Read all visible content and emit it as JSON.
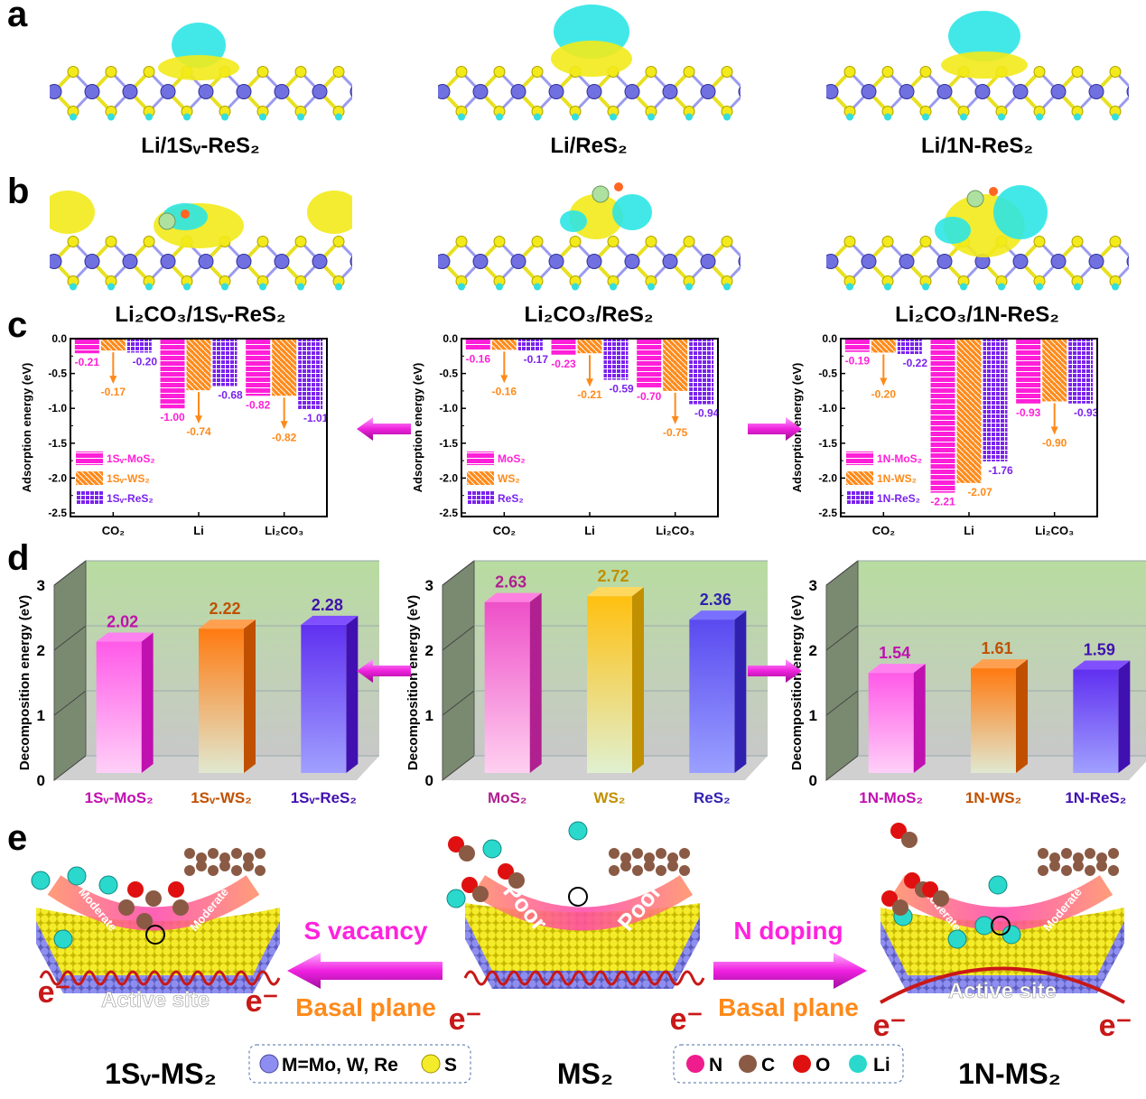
{
  "panel_labels": {
    "a": "a",
    "b": "b",
    "c": "c",
    "d": "d",
    "e": "e"
  },
  "panel_a": {
    "captions": [
      "Li/1Sᵥ-ReS₂",
      "Li/ReS₂",
      "Li/1N-ReS₂"
    ]
  },
  "panel_b": {
    "captions": [
      "Li₂CO₃/1Sᵥ-ReS₂",
      "Li₂CO₃/ReS₂",
      "Li₂CO₃/1N-ReS₂"
    ]
  },
  "colors": {
    "mo": "#ff1fd8",
    "w": "#ff8a1a",
    "re": "#7a22ee",
    "cyan": "#2ee6e6",
    "sulfur": "#f2ea1a",
    "metal": "#7b7bea",
    "arrow": "#ff33dd"
  },
  "chart_data": [
    {
      "type": "bar",
      "ylabel": "Adsorption energy (eV)",
      "ylim": [
        -2.5,
        0
      ],
      "yticks": [
        "0.0",
        "-0.5",
        "-1.0",
        "-1.5",
        "-2.0",
        "-2.5"
      ],
      "categories": [
        "CO₂",
        "Li",
        "Li₂CO₃"
      ],
      "legend": "bottom-left",
      "series": [
        {
          "name": "1Sᵥ-MoS₂",
          "values": [
            -0.21,
            -1.0,
            -0.82
          ],
          "labels": [
            "-0.21",
            "-1.00",
            "-0.82"
          ]
        },
        {
          "name": "1Sᵥ-WS₂",
          "values": [
            -0.17,
            -0.74,
            -0.82
          ],
          "labels": [
            "-0.17",
            "-0.74",
            "-0.82"
          ]
        },
        {
          "name": "1Sᵥ-ReS₂",
          "values": [
            -0.2,
            -0.68,
            -1.01
          ],
          "labels": [
            "-0.20",
            "-0.68",
            "-1.01"
          ]
        }
      ]
    },
    {
      "type": "bar",
      "ylabel": "Adsorption energy (eV)",
      "ylim": [
        -2.5,
        0
      ],
      "yticks": [
        "0.0",
        "-0.5",
        "-1.0",
        "-1.5",
        "-2.0",
        "-2.5"
      ],
      "categories": [
        "CO₂",
        "Li",
        "Li₂CO₃"
      ],
      "legend": "bottom-left",
      "series": [
        {
          "name": "MoS₂",
          "values": [
            -0.16,
            -0.23,
            -0.7
          ],
          "labels": [
            "-0.16",
            "-0.23",
            "-0.70"
          ]
        },
        {
          "name": "WS₂",
          "values": [
            -0.16,
            -0.21,
            -0.75
          ],
          "labels": [
            "-0.16",
            "-0.21",
            "-0.75"
          ]
        },
        {
          "name": "ReS₂",
          "values": [
            -0.17,
            -0.59,
            -0.94
          ],
          "labels": [
            "-0.17",
            "-0.59",
            "-0.94"
          ]
        }
      ]
    },
    {
      "type": "bar",
      "ylabel": "Adsorption energy (eV)",
      "ylim": [
        -2.5,
        0
      ],
      "yticks": [
        "0.0",
        "-0.5",
        "-1.0",
        "-1.5",
        "-2.0",
        "-2.5"
      ],
      "categories": [
        "CO₂",
        "Li",
        "Li₂CO₃"
      ],
      "legend": "bottom-left",
      "series": [
        {
          "name": "1N-MoS₂",
          "values": [
            -0.19,
            -2.21,
            -0.93
          ],
          "labels": [
            "-0.19",
            "-2.21",
            "-0.93"
          ]
        },
        {
          "name": "1N-WS₂",
          "values": [
            -0.2,
            -2.07,
            -0.9
          ],
          "labels": [
            "-0.20",
            "-2.07",
            "-0.90"
          ]
        },
        {
          "name": "1N-ReS₂",
          "values": [
            -0.22,
            -1.76,
            -0.93
          ],
          "labels": [
            "-0.22",
            "-1.76",
            "-0.93"
          ]
        }
      ]
    },
    {
      "type": "bar3d",
      "ylabel": "Decomposition energy (eV)",
      "ylim": [
        0,
        3
      ],
      "yticks": [
        "0",
        "1",
        "2",
        "3"
      ],
      "categories": [
        "1Sᵥ-MoS₂",
        "1Sᵥ-WS₂",
        "1Sᵥ-ReS₂"
      ],
      "values": [
        2.02,
        2.22,
        2.28
      ],
      "labels": [
        "2.02",
        "2.22",
        "2.28"
      ]
    },
    {
      "type": "bar3d",
      "ylabel": "Decomposition energy (eV)",
      "ylim": [
        0,
        3
      ],
      "yticks": [
        "0",
        "1",
        "2",
        "3"
      ],
      "categories": [
        "MoS₂",
        "WS₂",
        "ReS₂"
      ],
      "values": [
        2.63,
        2.72,
        2.36
      ],
      "labels": [
        "2.63",
        "2.72",
        "2.36"
      ]
    },
    {
      "type": "bar3d",
      "ylabel": "Decomposition energy (eV)",
      "ylim": [
        0,
        3
      ],
      "yticks": [
        "0",
        "1",
        "2",
        "3"
      ],
      "categories": [
        "1N-MoS₂",
        "1N-WS₂",
        "1N-ReS₂"
      ],
      "values": [
        1.54,
        1.61,
        1.59
      ],
      "labels": [
        "1.54",
        "1.61",
        "1.59"
      ]
    }
  ],
  "panel_e": {
    "s_vacancy": "S vacancy",
    "n_doping": "N doping",
    "basal_plane_left": "Basal plane",
    "basal_plane_right": "Basal plane",
    "moderate": "Moderate",
    "poor": "Poor",
    "active_site": "Active site",
    "electron": "e⁻",
    "names": [
      "1Sᵥ-MS₂",
      "MS₂",
      "1N-MS₂"
    ],
    "legend_left": {
      "metal": "M=Mo, W, Re",
      "sulfur": "S"
    },
    "legend_right": {
      "n": "N",
      "c": "C",
      "o": "O",
      "li": "Li"
    }
  }
}
